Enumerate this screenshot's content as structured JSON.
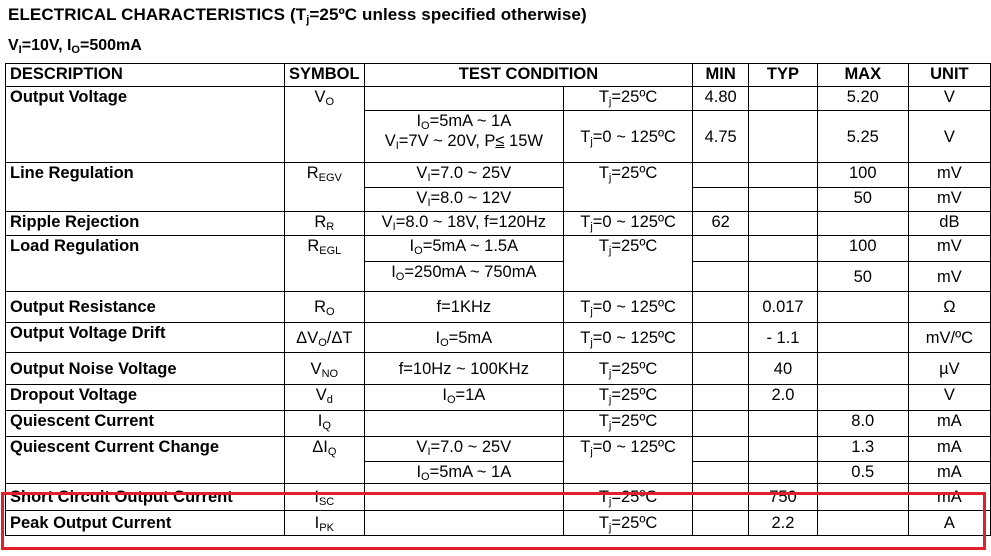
{
  "title": {
    "prefix": "ELECTRICAL CHARACTERISTICS (T",
    "sub": "j",
    "suffix": "=25ºC unless specified otherwise)"
  },
  "conditions": {
    "v_sym": "V",
    "v_sub": "I",
    "v_val": "=10V, ",
    "i_sym": "I",
    "i_sub": "O",
    "i_val": "=500mA"
  },
  "headers": {
    "description": "DESCRIPTION",
    "symbol": "SYMBOL",
    "test_condition": "TEST CONDITION",
    "min": "MIN",
    "typ": "TYP",
    "max": "MAX",
    "unit": "UNIT"
  },
  "rows": {
    "output_voltage": {
      "desc": "Output Voltage",
      "sym": "V",
      "sym_sub": "O",
      "temp1": "T",
      "temp1_sub": "j",
      "temp1_val": "=25ºC",
      "min1": "4.80",
      "max1": "5.20",
      "unit1": "V",
      "cond2a": "I",
      "cond2a_sub": "O",
      "cond2a_val": "=5mA ~ 1A",
      "cond2b": "V",
      "cond2b_sub": "I",
      "cond2b_val": "=7V ~ 20V, P",
      "cond2b_le": "≤",
      "cond2b_end": " 15W",
      "temp2": "T",
      "temp2_sub": "j",
      "temp2_val": "=0 ~ 125ºC",
      "min2": "4.75",
      "max2": "5.25",
      "unit2": "V"
    },
    "line_regulation": {
      "desc": "Line Regulation",
      "sym": "R",
      "sym_sub": "EGV",
      "cond1": "V",
      "cond1_sub": "I",
      "cond1_val": "=7.0 ~ 25V",
      "cond2": "V",
      "cond2_sub": "I",
      "cond2_val": "=8.0 ~ 12V",
      "temp": "T",
      "temp_sub": "j",
      "temp_val": "=25ºC",
      "max1": "100",
      "unit1": "mV",
      "max2": "50",
      "unit2": "mV"
    },
    "ripple_rejection": {
      "desc": "Ripple Rejection",
      "sym": "R",
      "sym_sub": "R",
      "cond": "V",
      "cond_sub": "I",
      "cond_val": "=8.0 ~ 18V, f=120Hz",
      "temp": "T",
      "temp_sub": "j",
      "temp_val": "=0 ~ 125ºC",
      "min": "62",
      "unit": "dB"
    },
    "load_regulation": {
      "desc": "Load Regulation",
      "sym": "R",
      "sym_sub": "EGL",
      "cond1": "I",
      "cond1_sub": "O",
      "cond1_val": "=5mA ~ 1.5A",
      "cond2": "I",
      "cond2_sub": "O",
      "cond2_val": "=250mA ~ 750mA",
      "temp": "T",
      "temp_sub": "j",
      "temp_val": "=25ºC",
      "max1": "100",
      "unit1": "mV",
      "max2": "50",
      "unit2": "mV"
    },
    "output_resistance": {
      "desc": "Output Resistance",
      "sym": "R",
      "sym_sub": "O",
      "cond": "f=1KHz",
      "temp": "T",
      "temp_sub": "j",
      "temp_val": "=0 ~ 125ºC",
      "typ": "0.017",
      "unit": "Ω"
    },
    "output_voltage_drift": {
      "desc": "Output Voltage Drift",
      "sym": "ΔV",
      "sym_sub": "O",
      "sym_end": "/ΔT",
      "cond": "I",
      "cond_sub": "O",
      "cond_val": "=5mA",
      "temp": "T",
      "temp_sub": "j",
      "temp_val": "=0 ~ 125ºC",
      "typ": "- 1.1",
      "unit": "mV/ºC"
    },
    "output_noise_voltage": {
      "desc": "Output Noise Voltage",
      "sym": "V",
      "sym_sub": "NO",
      "cond": "f=10Hz ~ 100KHz",
      "temp": "T",
      "temp_sub": "j",
      "temp_val": "=25ºC",
      "typ": "40",
      "unit": "µV"
    },
    "dropout_voltage": {
      "desc": "Dropout Voltage",
      "sym": "V",
      "sym_sub": "d",
      "cond": "I",
      "cond_sub": "O",
      "cond_val": "=1A",
      "temp": "T",
      "temp_sub": "j",
      "temp_val": "=25ºC",
      "typ": "2.0",
      "unit": "V"
    },
    "quiescent_current": {
      "desc": "Quiescent Current",
      "sym": "I",
      "sym_sub": "Q",
      "temp": "T",
      "temp_sub": "j",
      "temp_val": "=25ºC",
      "max": "8.0",
      "unit": "mA"
    },
    "quiescent_current_change": {
      "desc": "Quiescent Current Change",
      "sym": "ΔI",
      "sym_sub": "Q",
      "cond1": "V",
      "cond1_sub": "I",
      "cond1_val": "=7.0 ~ 25V",
      "cond2": "I",
      "cond2_sub": "O",
      "cond2_val": "=5mA ~ 1A",
      "temp": "T",
      "temp_sub": "j",
      "temp_val": "=0 ~ 125ºC",
      "max1": "1.3",
      "unit1": "mA",
      "max2": "0.5",
      "unit2": "mA"
    },
    "short_circuit_output_current": {
      "desc": "Short Circuit Output Current",
      "sym": "I",
      "sym_sub": "SC",
      "temp": "T",
      "temp_sub": "j",
      "temp_val": "=25ºC",
      "typ": "750",
      "unit": "mA"
    },
    "peak_output_current": {
      "desc": "Peak Output Current",
      "sym": "I",
      "sym_sub": "PK",
      "temp": "T",
      "temp_sub": "j",
      "temp_val": "=25ºC",
      "typ": "2.2",
      "unit": "A"
    }
  },
  "highlight_color": "#e0202a"
}
